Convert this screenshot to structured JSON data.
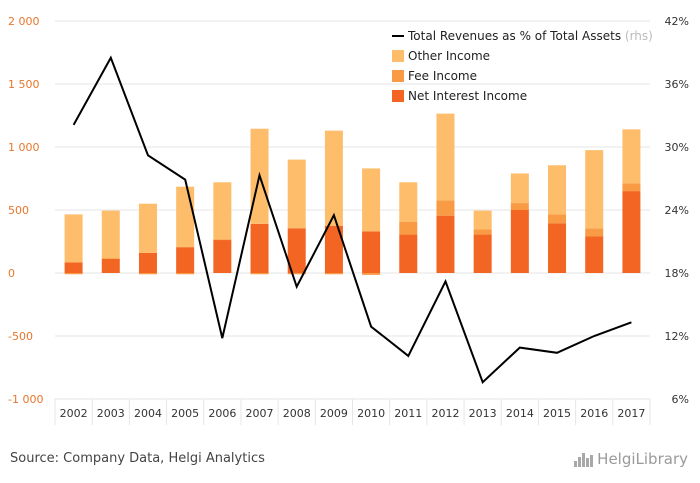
{
  "chart_data": {
    "type": "bar",
    "categories": [
      "2002",
      "2003",
      "2004",
      "2005",
      "2006",
      "2007",
      "2008",
      "2009",
      "2010",
      "2011",
      "2012",
      "2013",
      "2014",
      "2015",
      "2016",
      "2017"
    ],
    "series": [
      {
        "name": "Net Interest Income",
        "kind": "bar",
        "axis": "left",
        "color": "#f26522",
        "values": [
          85,
          115,
          160,
          205,
          265,
          390,
          355,
          375,
          330,
          305,
          455,
          305,
          500,
          395,
          290,
          650
        ]
      },
      {
        "name": "Fee Income",
        "kind": "bar",
        "axis": "left",
        "color": "#f99a45",
        "values": [
          -10,
          0,
          -10,
          -10,
          0,
          -10,
          -10,
          -10,
          -15,
          100,
          120,
          40,
          55,
          70,
          65,
          60
        ]
      },
      {
        "name": "Other Income",
        "kind": "bar",
        "axis": "left",
        "color": "#fdbd6a",
        "values": [
          380,
          380,
          390,
          480,
          455,
          755,
          545,
          755,
          500,
          315,
          690,
          150,
          235,
          390,
          620,
          430
        ]
      },
      {
        "name": "Total Revenues as % of Total Assets",
        "kind": "line",
        "axis": "right",
        "color": "#000000",
        "values": [
          32.1,
          38.5,
          29.2,
          26.9,
          11.8,
          27.3,
          16.7,
          23.5,
          12.9,
          10.1,
          17.2,
          7.6,
          10.9,
          10.4,
          12.0,
          13.3
        ]
      }
    ],
    "ylim_left": [
      -1000,
      2000
    ],
    "yticks_left": [
      "2 000",
      "1 500",
      "1 000",
      "500",
      "0",
      "-500",
      "-1 000"
    ],
    "ylim_right": [
      6,
      42
    ],
    "yticks_right": [
      "42%",
      "36%",
      "30%",
      "24%",
      "18%",
      "12%",
      "6%"
    ],
    "legend_position": "top-right",
    "legend_rhs_suffix": "(rhs)",
    "grid": true
  },
  "footer": {
    "source": "Source: Company Data, Helgi Analytics",
    "logo": "HelgiLibrary"
  }
}
